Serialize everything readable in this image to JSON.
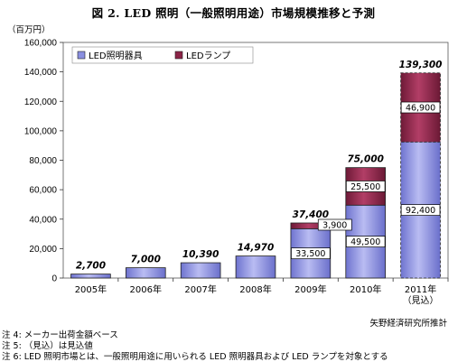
{
  "title": "図 2. LED 照明（一般照明用途）市場規模推移と予測",
  "unit_label": "（百万円）",
  "chart_data": {
    "type": "bar",
    "stacked": true,
    "categories": [
      "2005年",
      "2006年",
      "2007年",
      "2008年",
      "2009年",
      "2010年",
      "2011年\n（見込）"
    ],
    "series": [
      {
        "name": "LED照明器具",
        "color": "#8A8FE0",
        "values": [
          2700,
          7000,
          10390,
          14970,
          33500,
          49500,
          92400
        ]
      },
      {
        "name": "LEDランプ",
        "color": "#8B2447",
        "values": [
          null,
          null,
          null,
          null,
          3900,
          25500,
          46900
        ]
      }
    ],
    "totals": [
      "2,700",
      "7,000",
      "10,390",
      "14,970",
      "37,400",
      "75,000",
      "139,300"
    ],
    "segment_labels": {
      "LED照明器具": [
        null,
        null,
        null,
        null,
        "33,500",
        "49,500",
        "92,400"
      ],
      "LEDランプ": [
        null,
        null,
        null,
        null,
        "3,900",
        "25,500",
        "46,900"
      ]
    },
    "ylim": [
      0,
      160000
    ],
    "yticks": [
      0,
      20000,
      40000,
      60000,
      80000,
      100000,
      120000,
      140000,
      160000
    ],
    "ytick_labels": [
      "0",
      "20,000",
      "40,000",
      "60,000",
      "80,000",
      "100,000",
      "120,000",
      "140,000",
      "160,000"
    ],
    "legend_position": "top-left",
    "grid": false,
    "last_bar_dashed": true
  },
  "source": "矢野経済研究所推計",
  "notes": [
    "注 4:  メーカー出荷金額ベース",
    "注 5:  （見込）は見込値",
    "注 6:  LED 照明市場とは、一般照明用途に用いられる LED 照明器具および LED ランプを対象とする"
  ]
}
